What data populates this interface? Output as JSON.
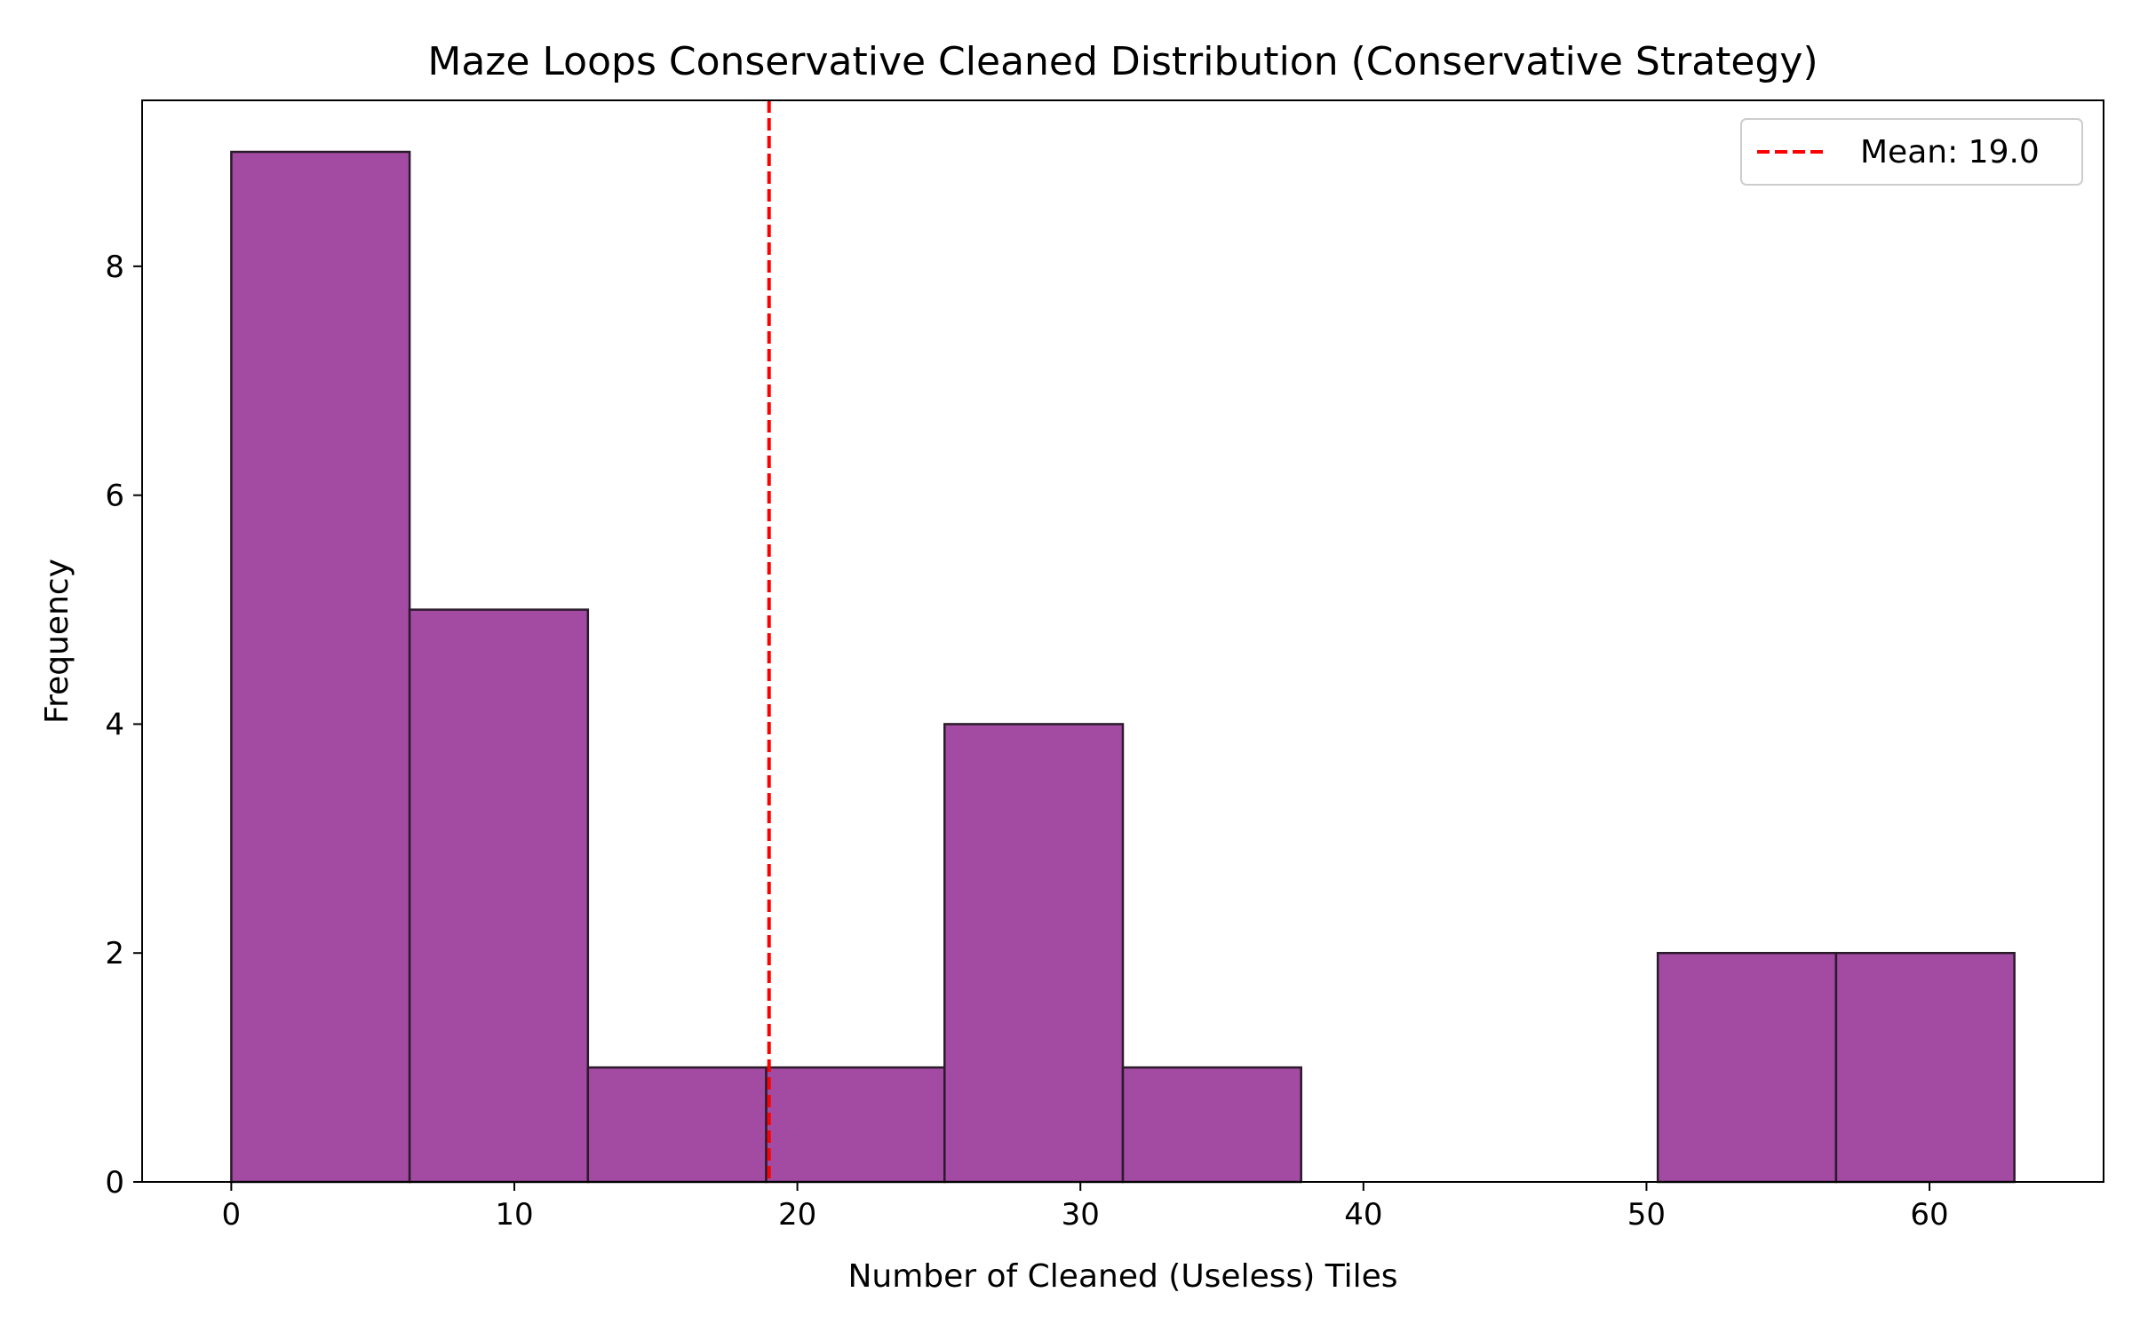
{
  "chart_data": {
    "type": "bar",
    "title": "Maze Loops Conservative Cleaned Distribution (Conservative Strategy)",
    "xlabel": "Number of Cleaned (Useless) Tiles",
    "ylabel": "Frequency",
    "bin_edges": [
      0,
      6.3,
      12.6,
      18.9,
      25.2,
      31.5,
      37.8,
      44.1,
      50.4,
      56.7,
      63
    ],
    "values": [
      9,
      5,
      1,
      1,
      4,
      1,
      0,
      0,
      2,
      2
    ],
    "xlim": [
      -3.15,
      66.15
    ],
    "ylim": [
      0,
      9.45
    ],
    "xticks": [
      0,
      10,
      20,
      30,
      40,
      50,
      60
    ],
    "yticks": [
      0,
      2,
      4,
      6,
      8
    ],
    "mean": 19.0,
    "legend": {
      "label": "Mean: 19.0",
      "placement": "top-right"
    },
    "grid": false,
    "colors": {
      "bar_fill": "#a34ba3",
      "bar_edge": "#2a1a2a",
      "mean_line": "#ff0000"
    }
  }
}
